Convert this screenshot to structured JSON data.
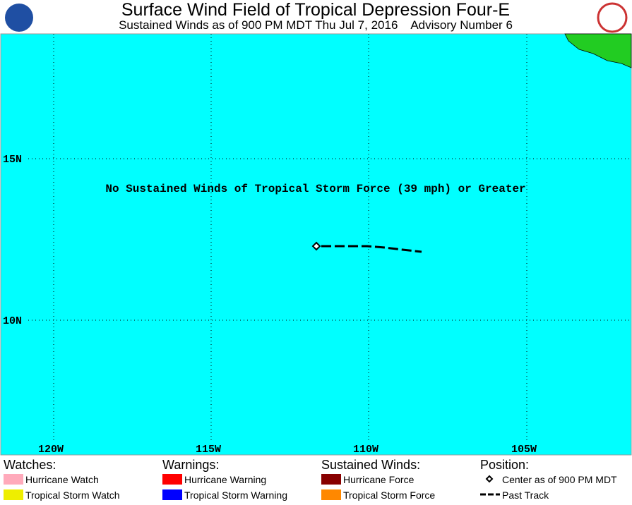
{
  "header": {
    "title": "Surface Wind Field of Tropical Depression Four-E",
    "subtitle": "Sustained Winds as of 900 PM MDT Thu Jul 7, 2016    Advisory Number 6"
  },
  "map": {
    "annotation": "No Sustained Winds of Tropical Storm Force (39 mph) or Greater",
    "lat_labels": [
      "15N",
      "10N"
    ],
    "lon_labels": [
      "120W",
      "115W",
      "110W",
      "105W"
    ]
  },
  "legend": {
    "watches": {
      "heading": "Watches:",
      "items": [
        "Hurricane Watch",
        "Tropical Storm Watch"
      ]
    },
    "warnings": {
      "heading": "Warnings:",
      "items": [
        "Hurricane Warning",
        "Tropical Storm Warning"
      ]
    },
    "winds": {
      "heading": "Sustained Winds:",
      "items": [
        "Hurricane Force",
        "Tropical Storm Force"
      ]
    },
    "position": {
      "heading": "Position:",
      "items": [
        "Center as of 900 PM MDT",
        "Past Track"
      ]
    }
  }
}
